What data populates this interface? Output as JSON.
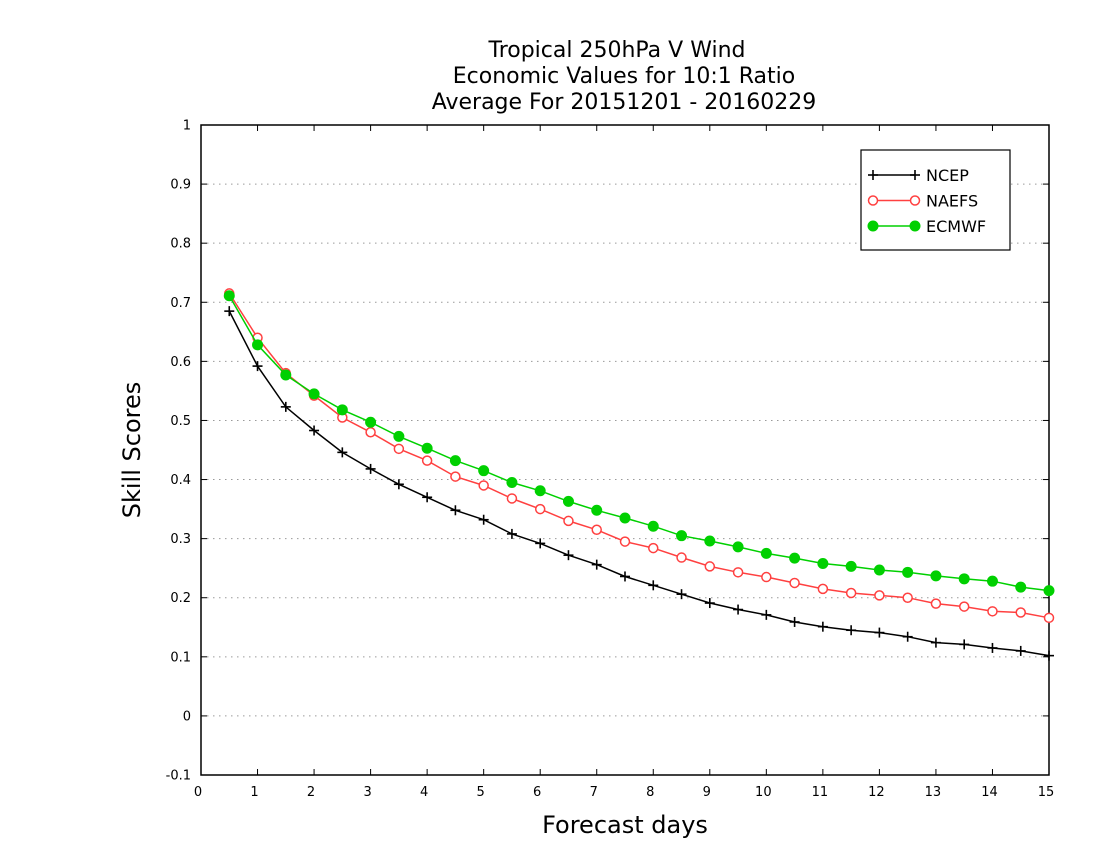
{
  "chart_data": {
    "type": "line",
    "title": [
      "Tropical 250hPa V Wind",
      "Economic Values for 10:1 Ratio",
      "Average For 20151201 - 20160229"
    ],
    "xlabel": "Forecast days",
    "ylabel": "Skill Scores",
    "xlim": [
      0,
      15
    ],
    "ylim": [
      -0.1,
      1
    ],
    "xticks": [
      0,
      1,
      2,
      3,
      4,
      5,
      6,
      7,
      8,
      9,
      10,
      11,
      12,
      13,
      14,
      15
    ],
    "yticks": [
      -0.1,
      0,
      0.1,
      0.2,
      0.3,
      0.4,
      0.5,
      0.6,
      0.7,
      0.8,
      0.9,
      1
    ],
    "ytick_labels": [
      "-0.1",
      "0",
      "0.1",
      "0.2",
      "0.3",
      "0.4",
      "0.5",
      "0.6",
      "0.7",
      "0.8",
      "0.9",
      "1"
    ],
    "grid": "horizontal dotted",
    "legend_position": "top-right",
    "x": [
      0.5,
      1.0,
      1.5,
      2.0,
      2.5,
      3.0,
      3.5,
      4.0,
      4.5,
      5.0,
      5.5,
      6.0,
      6.5,
      7.0,
      7.5,
      8.0,
      8.5,
      9.0,
      9.5,
      10.0,
      10.5,
      11.0,
      11.5,
      12.0,
      12.5,
      13.0,
      13.5,
      14.0,
      14.5,
      15.0
    ],
    "series": [
      {
        "name": "NCEP",
        "color": "#000000",
        "marker": "plus",
        "values": [
          0.685,
          0.592,
          0.523,
          0.483,
          0.446,
          0.418,
          0.392,
          0.37,
          0.348,
          0.332,
          0.308,
          0.292,
          0.272,
          0.256,
          0.236,
          0.221,
          0.206,
          0.191,
          0.18,
          0.171,
          0.159,
          0.151,
          0.145,
          0.141,
          0.134,
          0.124,
          0.121,
          0.115,
          0.11,
          0.102
        ]
      },
      {
        "name": "NAEFS",
        "color": "#ff4040",
        "marker": "open-circle",
        "values": [
          0.715,
          0.64,
          0.58,
          0.542,
          0.505,
          0.48,
          0.452,
          0.432,
          0.405,
          0.39,
          0.368,
          0.35,
          0.33,
          0.315,
          0.295,
          0.284,
          0.268,
          0.253,
          0.243,
          0.235,
          0.225,
          0.215,
          0.208,
          0.204,
          0.2,
          0.19,
          0.185,
          0.177,
          0.175,
          0.166
        ]
      },
      {
        "name": "ECMWF",
        "color": "#00d000",
        "marker": "filled-circle",
        "values": [
          0.711,
          0.628,
          0.577,
          0.545,
          0.518,
          0.497,
          0.473,
          0.453,
          0.432,
          0.415,
          0.395,
          0.381,
          0.363,
          0.348,
          0.335,
          0.321,
          0.305,
          0.296,
          0.286,
          0.275,
          0.267,
          0.258,
          0.253,
          0.247,
          0.243,
          0.237,
          0.232,
          0.228,
          0.218,
          0.212
        ]
      }
    ]
  }
}
